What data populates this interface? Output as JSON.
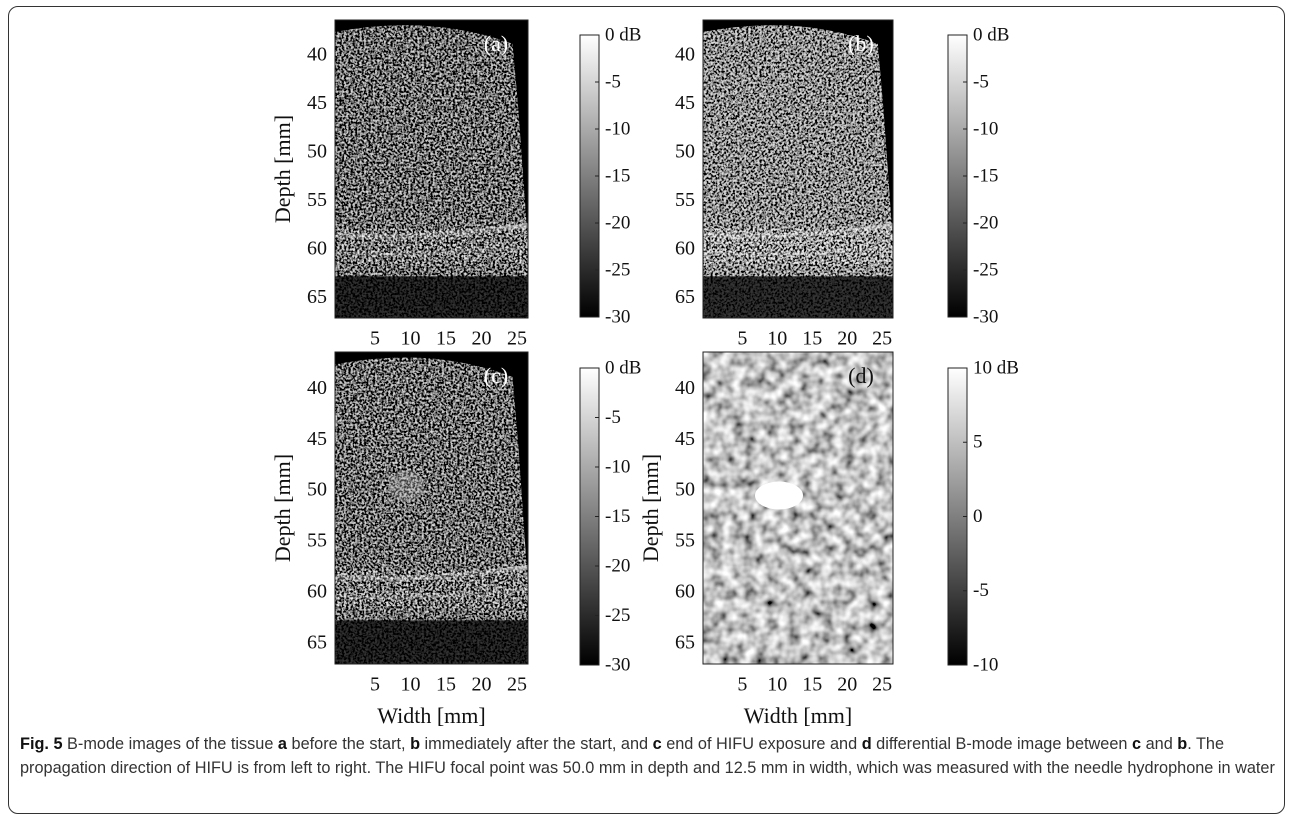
{
  "figure": {
    "panels": [
      {
        "label": "(a)",
        "y_axis_label": "Depth [mm]",
        "yticks": [
          "40",
          "45",
          "50",
          "55",
          "60",
          "65"
        ],
        "xticks": [
          "5",
          "10",
          "15",
          "20",
          "25"
        ],
        "colorbar_ticks": [
          "0 dB",
          "-5",
          "-10",
          "-15",
          "-20",
          "-25",
          "-30"
        ]
      },
      {
        "label": "(b)",
        "yticks": [
          "40",
          "45",
          "50",
          "55",
          "60",
          "65"
        ],
        "xticks": [
          "5",
          "10",
          "15",
          "20",
          "25"
        ],
        "colorbar_ticks": [
          "0 dB",
          "-5",
          "-10",
          "-15",
          "-20",
          "-25",
          "-30"
        ]
      },
      {
        "label": "(c)",
        "y_axis_label": "Depth [mm]",
        "x_axis_label": "Width [mm]",
        "yticks": [
          "40",
          "45",
          "50",
          "55",
          "60",
          "65"
        ],
        "xticks": [
          "5",
          "10",
          "15",
          "20",
          "25"
        ],
        "colorbar_ticks": [
          "0 dB",
          "-5",
          "-10",
          "-15",
          "-20",
          "-25",
          "-30"
        ]
      },
      {
        "label": "(d)",
        "y_axis_label": "Depth [mm]",
        "x_axis_label": "Width [mm]",
        "yticks": [
          "40",
          "45",
          "50",
          "55",
          "60",
          "65"
        ],
        "xticks": [
          "5",
          "10",
          "15",
          "20",
          "25"
        ],
        "colorbar_ticks": [
          "10 dB",
          "5",
          "0",
          "-5",
          "-10"
        ]
      }
    ]
  },
  "caption": {
    "runs": [
      {
        "text": "Fig. 5",
        "bold": true
      },
      {
        "text": " B-mode images of the tissue ",
        "bold": false
      },
      {
        "text": "a",
        "bold": true
      },
      {
        "text": " before the start, ",
        "bold": false
      },
      {
        "text": "b",
        "bold": true
      },
      {
        "text": " immediately after the start, and ",
        "bold": false
      },
      {
        "text": "c",
        "bold": true
      },
      {
        "text": " end of HIFU exposure and ",
        "bold": false
      },
      {
        "text": "d",
        "bold": true
      },
      {
        "text": " differential B-mode image between ",
        "bold": false
      },
      {
        "text": "c",
        "bold": true
      },
      {
        "text": " and ",
        "bold": false
      },
      {
        "text": "b",
        "bold": true
      },
      {
        "text": ". The propagation direction of HIFU is from left to right. The HIFU focal point was 50.0 mm in depth and 12.5 mm in width, which was measured with the needle hydrophone in water",
        "bold": false
      }
    ]
  }
}
